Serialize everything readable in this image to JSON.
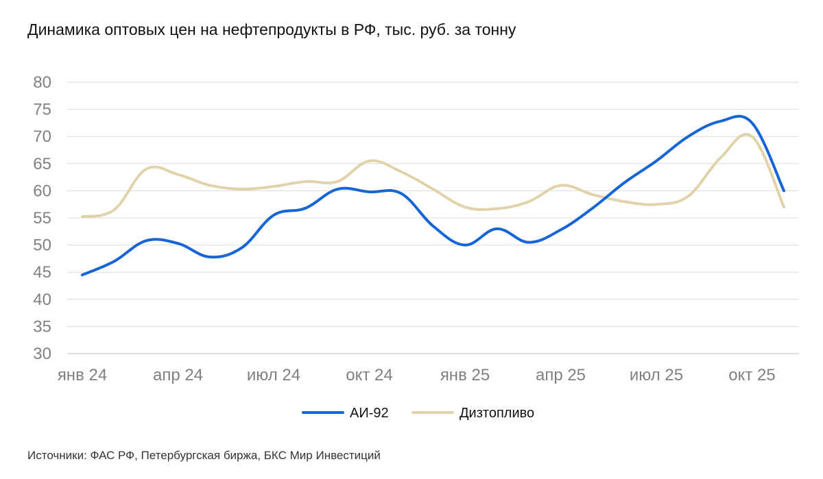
{
  "chart_data": {
    "type": "line",
    "title": "Динамика оптовых цен на нефтепродукты в РФ, тыс. руб. за тонну",
    "xlabel": "",
    "ylabel": "",
    "ylim": [
      30,
      80
    ],
    "yticks": [
      "30",
      "35",
      "40",
      "45",
      "50",
      "55",
      "60",
      "65",
      "70",
      "75",
      "80"
    ],
    "xtick_labels": [
      "янв 24",
      "апр 24",
      "июл 24",
      "окт 24",
      "янв 25",
      "апр 25",
      "июл 25",
      "окт 25"
    ],
    "x_months": [
      "янв 24",
      "фев 24",
      "мар 24",
      "апр 24",
      "май 24",
      "июн 24",
      "июл 24",
      "авг 24",
      "сен 24",
      "окт 24",
      "ноя 24",
      "дек 24",
      "янв 25",
      "фев 25",
      "мар 25",
      "апр 25",
      "май 25",
      "июн 25",
      "июл 25",
      "авг 25",
      "сен 25",
      "окт 25",
      "ноя 25"
    ],
    "series": [
      {
        "name": "АИ-92",
        "color": "#1565d8",
        "values": [
          44.5,
          47.0,
          50.8,
          50.3,
          47.8,
          49.5,
          55.5,
          56.8,
          60.3,
          59.8,
          59.5,
          53.5,
          50.0,
          53.0,
          50.5,
          52.8,
          56.8,
          61.5,
          65.5,
          70.0,
          72.8,
          72.5,
          60.0
        ]
      },
      {
        "name": "Дизтопливо",
        "color": "#e2d2aa",
        "values": [
          55.2,
          56.5,
          64.0,
          63.0,
          61.0,
          60.3,
          60.8,
          61.7,
          61.7,
          65.5,
          63.5,
          60.3,
          57.0,
          56.7,
          58.0,
          61.0,
          59.3,
          58.0,
          57.5,
          59.0,
          66.0,
          70.0,
          57.0
        ]
      }
    ],
    "legend_position": "bottom",
    "grid": true
  },
  "footer": {
    "source": "Источники: ФАС РФ, Петербургская биржа, БКС Мир Инвестиций"
  }
}
